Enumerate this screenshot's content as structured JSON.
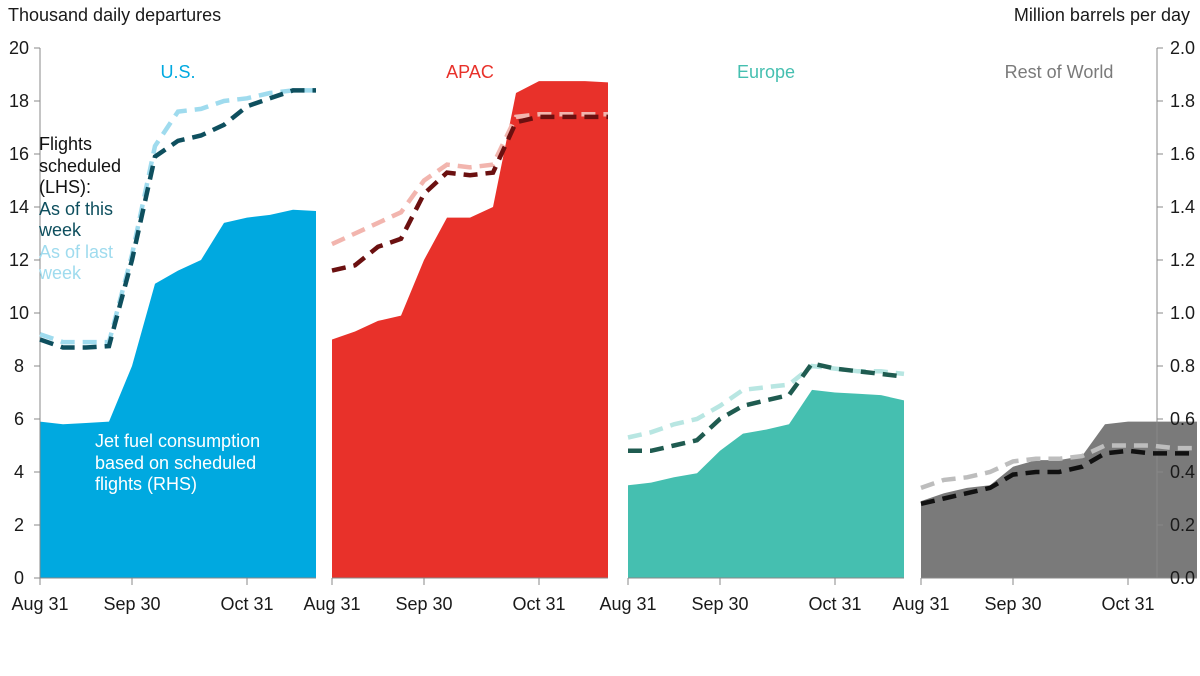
{
  "axes": {
    "left_label": "Thousand daily departures",
    "right_label": "Million barrels per day",
    "left_ticks": [
      "0",
      "2",
      "4",
      "6",
      "8",
      "10",
      "12",
      "14",
      "16",
      "18",
      "20"
    ],
    "right_ticks": [
      "0.0",
      "0.2",
      "0.4",
      "0.6",
      "0.8",
      "1.0",
      "1.2",
      "1.4",
      "1.6",
      "1.8",
      "2.0"
    ],
    "x_ticks": [
      "Aug 31",
      "Sep 30",
      "Oct 31"
    ]
  },
  "legend": {
    "title": "Flights scheduled (LHS):",
    "this_week": "As of this week",
    "last_week": "As of last week",
    "area_note": "Jet fuel consumption based on scheduled flights (RHS)"
  },
  "colors": {
    "us_area": "#00A9E0",
    "us_this_week": "#0E4F5E",
    "us_last_week": "#9FDBEE",
    "apac_area": "#E8312A",
    "apac_this_week": "#6B1010",
    "apac_last_week": "#F2B5AE",
    "europe_area": "#45BFB0",
    "europe_this_week": "#1F5B50",
    "europe_last_week": "#B8E6E2",
    "row_area": "#7A7A7A",
    "row_this_week": "#111111",
    "row_last_week": "#BDBDBD"
  },
  "chart_data": {
    "type": "area",
    "ylim_left": [
      0,
      20
    ],
    "ylim_right": [
      0,
      2.0
    ],
    "x_dates": [
      "Aug 31",
      "Sep 7",
      "Sep 14",
      "Sep 21",
      "Sep 28",
      "Oct 5",
      "Oct 12",
      "Oct 19",
      "Oct 26",
      "Nov 2",
      "Nov 9",
      "Nov 16",
      "Nov 23"
    ],
    "panels": [
      {
        "region": "U.S.",
        "series": [
          {
            "name": "Jet fuel consumption based on scheduled flights (RHS)",
            "axis": "right",
            "values": [
              0.59,
              0.58,
              0.585,
              0.59,
              0.8,
              1.11,
              1.16,
              1.2,
              1.34,
              1.36,
              1.37,
              1.39,
              1.385
            ]
          },
          {
            "name": "As of this week",
            "axis": "left",
            "values": [
              9.0,
              8.7,
              8.7,
              8.75,
              12.0,
              15.9,
              16.5,
              16.7,
              17.1,
              17.8,
              18.1,
              18.4,
              18.4
            ]
          },
          {
            "name": "As of last week",
            "axis": "left",
            "values": [
              9.2,
              8.9,
              8.9,
              8.9,
              12.2,
              16.3,
              17.6,
              17.7,
              18.0,
              18.1,
              18.3,
              18.4,
              18.4
            ]
          }
        ]
      },
      {
        "region": "APAC",
        "series": [
          {
            "name": "Jet fuel consumption based on scheduled flights (RHS)",
            "axis": "right",
            "values": [
              0.9,
              0.93,
              0.97,
              0.99,
              1.2,
              1.36,
              1.36,
              1.4,
              1.83,
              1.875,
              1.875,
              1.875,
              1.87
            ]
          },
          {
            "name": "As of this week",
            "axis": "left",
            "values": [
              11.6,
              11.8,
              12.5,
              12.8,
              14.5,
              15.3,
              15.2,
              15.3,
              17.2,
              17.4,
              17.4,
              17.4,
              17.4
            ]
          },
          {
            "name": "As of last week",
            "axis": "left",
            "values": [
              12.6,
              13.0,
              13.4,
              13.8,
              15.0,
              15.6,
              15.5,
              15.6,
              17.4,
              17.5,
              17.5,
              17.5,
              17.5
            ]
          }
        ]
      },
      {
        "region": "Europe",
        "series": [
          {
            "name": "Jet fuel consumption based on scheduled flights (RHS)",
            "axis": "right",
            "values": [
              0.35,
              0.36,
              0.38,
              0.395,
              0.48,
              0.545,
              0.56,
              0.58,
              0.71,
              0.7,
              0.695,
              0.69,
              0.67
            ]
          },
          {
            "name": "As of this week",
            "axis": "left",
            "values": [
              4.8,
              4.8,
              5.0,
              5.2,
              6.0,
              6.5,
              6.7,
              6.9,
              8.1,
              7.9,
              7.8,
              7.7,
              7.6
            ]
          },
          {
            "name": "As of last week",
            "axis": "left",
            "values": [
              5.3,
              5.5,
              5.8,
              6.0,
              6.5,
              7.1,
              7.2,
              7.3,
              8.0,
              7.9,
              7.8,
              7.8,
              7.7
            ]
          }
        ]
      },
      {
        "region": "Rest of World",
        "series": [
          {
            "name": "Jet fuel consumption based on scheduled flights (RHS)",
            "axis": "right",
            "values": [
              0.29,
              0.32,
              0.34,
              0.35,
              0.42,
              0.445,
              0.445,
              0.46,
              0.58,
              0.59,
              0.59,
              0.59,
              0.59
            ]
          },
          {
            "name": "As of this week",
            "axis": "left",
            "values": [
              2.8,
              3.0,
              3.2,
              3.4,
              3.9,
              4.0,
              4.0,
              4.2,
              4.7,
              4.8,
              4.7,
              4.7,
              4.7
            ]
          },
          {
            "name": "As of last week",
            "axis": "left",
            "values": [
              3.4,
              3.7,
              3.8,
              4.0,
              4.4,
              4.5,
              4.5,
              4.6,
              5.0,
              5.0,
              5.0,
              4.9,
              4.9
            ]
          }
        ]
      }
    ]
  }
}
